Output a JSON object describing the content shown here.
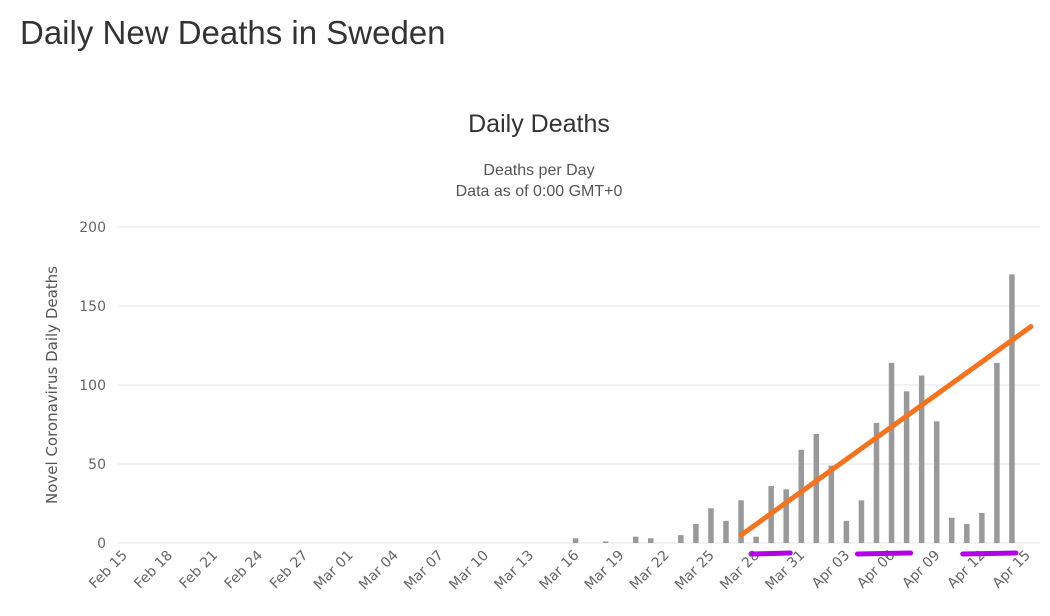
{
  "page": {
    "title": "Daily New Deaths in Sweden"
  },
  "colors": {
    "bar": "#999999",
    "grid": "#e6e6e6",
    "trend": "#f27420",
    "annotation": "#b100e8"
  },
  "chart_data": {
    "type": "bar",
    "title": "Daily Deaths",
    "subtitle": [
      "Deaths per Day",
      "Data as of 0:00 GMT+0"
    ],
    "ylabel": "Novel Coronavirus Daily Deaths",
    "xlabel": "",
    "ylim": [
      0,
      200
    ],
    "yticks": [
      0,
      50,
      100,
      150,
      200
    ],
    "grid": true,
    "categories": [
      "Feb 15",
      "Feb 16",
      "Feb 17",
      "Feb 18",
      "Feb 19",
      "Feb 20",
      "Feb 21",
      "Feb 22",
      "Feb 23",
      "Feb 24",
      "Feb 25",
      "Feb 26",
      "Feb 27",
      "Feb 28",
      "Feb 29",
      "Mar 01",
      "Mar 02",
      "Mar 03",
      "Mar 04",
      "Mar 05",
      "Mar 06",
      "Mar 07",
      "Mar 08",
      "Mar 09",
      "Mar 10",
      "Mar 11",
      "Mar 12",
      "Mar 13",
      "Mar 14",
      "Mar 15",
      "Mar 16",
      "Mar 17",
      "Mar 18",
      "Mar 19",
      "Mar 20",
      "Mar 21",
      "Mar 22",
      "Mar 23",
      "Mar 24",
      "Mar 25",
      "Mar 26",
      "Mar 27",
      "Mar 28",
      "Mar 29",
      "Mar 30",
      "Mar 31",
      "Apr 01",
      "Apr 02",
      "Apr 03",
      "Apr 04",
      "Apr 05",
      "Apr 06",
      "Apr 07",
      "Apr 08",
      "Apr 09",
      "Apr 10",
      "Apr 11",
      "Apr 12",
      "Apr 13",
      "Apr 14",
      "Apr 15"
    ],
    "tick_labels": [
      "Feb 15",
      "Feb 18",
      "Feb 21",
      "Feb 24",
      "Feb 27",
      "Mar 01",
      "Mar 04",
      "Mar 07",
      "Mar 10",
      "Mar 13",
      "Mar 16",
      "Mar 19",
      "Mar 22",
      "Mar 25",
      "Mar 28",
      "Mar 31",
      "Apr 03",
      "Apr 06",
      "Apr 09",
      "Apr 12",
      "Apr 15"
    ],
    "values": [
      0,
      0,
      0,
      0,
      0,
      0,
      0,
      0,
      0,
      0,
      0,
      0,
      0,
      0,
      0,
      0,
      0,
      0,
      0,
      0,
      0,
      0,
      0,
      0,
      0,
      0,
      0,
      0,
      0,
      0,
      3,
      0,
      1,
      0,
      4,
      3,
      0,
      5,
      12,
      22,
      14,
      27,
      4,
      36,
      34,
      59,
      69,
      49,
      14,
      27,
      76,
      114,
      96,
      106,
      77,
      16,
      12,
      19,
      114,
      170,
      0
    ],
    "trendline": {
      "from": [
        "Mar 27",
        5
      ],
      "to": [
        "Apr 15",
        137
      ]
    },
    "annotations": [
      {
        "type": "underline",
        "from": "Mar 28",
        "to": "Mar 30"
      },
      {
        "type": "underline",
        "from": "Apr 04",
        "to": "Apr 07"
      },
      {
        "type": "underline",
        "from": "Apr 11",
        "to": "Apr 14"
      }
    ]
  }
}
